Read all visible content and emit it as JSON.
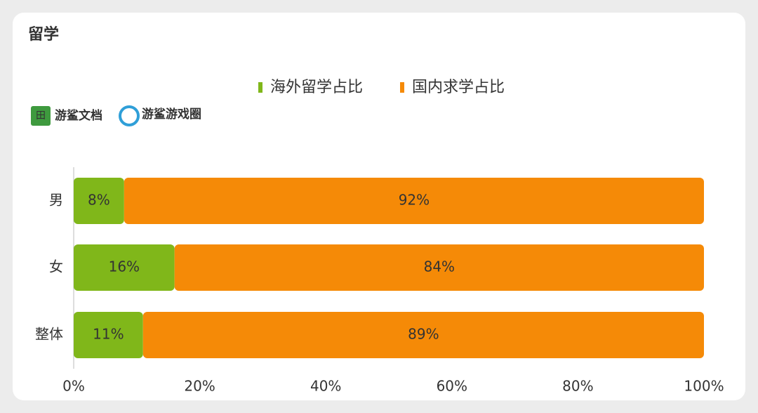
{
  "chart_data": {
    "type": "stacked-barh",
    "title": "留学",
    "categories": [
      "男",
      "女",
      "整体"
    ],
    "series": [
      {
        "name": "海外留学占比",
        "color": "#80b71a",
        "values": [
          8,
          16,
          11
        ],
        "value_labels": [
          "8%",
          "16%",
          "11%"
        ]
      },
      {
        "name": "国内求学占比",
        "color": "#f58a07",
        "values": [
          92,
          84,
          89
        ],
        "value_labels": [
          "92%",
          "84%",
          "89%"
        ]
      }
    ],
    "xlim": [
      0,
      100
    ],
    "xticks": [
      {
        "value": 0,
        "label": "0%"
      },
      {
        "value": 20,
        "label": "20%"
      },
      {
        "value": 40,
        "label": "40%"
      },
      {
        "value": 60,
        "label": "60%"
      },
      {
        "value": 80,
        "label": "80%"
      },
      {
        "value": 100,
        "label": "100%"
      }
    ],
    "legend": "top"
  },
  "logos": [
    "游鲨文档",
    "游鲨游戏圈"
  ]
}
